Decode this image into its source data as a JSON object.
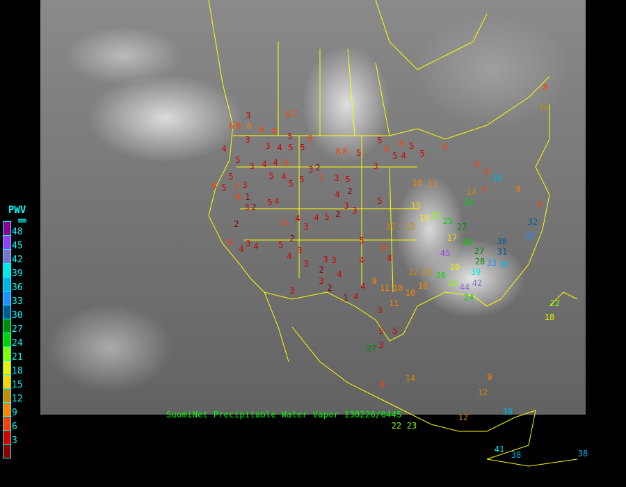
{
  "caption": "SuomiNet Precipitable Water Vapor  130226/0445",
  "legend": {
    "title": "PWV",
    "unit": "mm",
    "ticks": [
      "48",
      "45",
      "42",
      "39",
      "36",
      "33",
      "30",
      "27",
      "24",
      "21",
      "18",
      "15",
      "12",
      "9",
      "6",
      "3"
    ],
    "colors": [
      "#900090",
      "#9a3cf0",
      "#8070d0",
      "#00e8e8",
      "#00b4e6",
      "#1e90ff",
      "#005a96",
      "#008c00",
      "#00d200",
      "#80ff00",
      "#f0f000",
      "#ffd200",
      "#c88c00",
      "#ff8200",
      "#ff4000",
      "#d20000",
      "#8c0000"
    ]
  },
  "border_color": "#ffff00",
  "stations": [
    "6",
    "8",
    "9",
    "6",
    "8",
    "5",
    "8",
    "5",
    "3",
    "4",
    "5",
    "3",
    "8",
    "8",
    "5",
    "7",
    "5",
    "6",
    "8",
    "3",
    "5",
    "4",
    "5",
    "5",
    "4",
    "6",
    "3",
    "4",
    "5",
    "4",
    "5",
    "7",
    "5",
    "8",
    "6",
    "3",
    "1",
    "3",
    "5",
    "4",
    "5",
    "5",
    "3",
    "2",
    "3",
    "5",
    "4",
    "2",
    "5",
    "2",
    "4",
    "6",
    "4",
    "3",
    "4",
    "5",
    "2",
    "3",
    "3",
    "6",
    "2",
    "4",
    "3",
    "4",
    "5",
    "4",
    "3",
    "2",
    "3",
    "3",
    "5",
    "2",
    "3",
    "4",
    "4",
    "3",
    "3",
    "1",
    "4",
    "5",
    "2",
    "3",
    "4",
    "5",
    "5",
    "8",
    "3",
    "4",
    "10",
    "11",
    "10",
    "11",
    "12",
    "13",
    "15",
    "19",
    "22",
    "25",
    "27",
    "26",
    "28",
    "30",
    "31",
    "33",
    "32",
    "27",
    "33",
    "36",
    "39",
    "42",
    "44",
    "45",
    "20",
    "17",
    "22",
    "24",
    "26",
    "9",
    "11",
    "10",
    "10",
    "12",
    "13",
    "14",
    "7",
    "8",
    "8",
    "9",
    "6",
    "8",
    "13",
    "6",
    "6",
    "14",
    "22",
    "23",
    "9",
    "12",
    "12",
    "38",
    "41",
    "38",
    "38",
    "18",
    "22",
    "36",
    "24",
    "27",
    "7",
    "6",
    "3"
  ]
}
